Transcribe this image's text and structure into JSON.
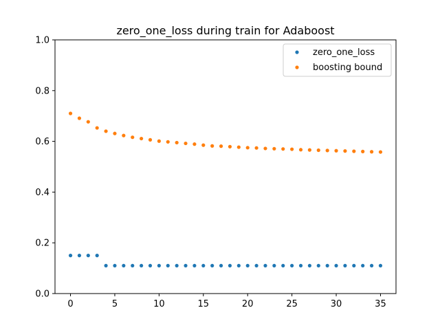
{
  "chart_data": {
    "type": "scatter",
    "title": "zero_one_loss during train for Adaboost",
    "xlabel": "",
    "ylabel": "",
    "xlim": [
      -1.75,
      36.75
    ],
    "ylim": [
      0.0,
      1.0
    ],
    "xticks": [
      0,
      5,
      10,
      15,
      20,
      25,
      30,
      35
    ],
    "yticks": [
      0.0,
      0.2,
      0.4,
      0.6,
      0.8,
      1.0
    ],
    "xtick_labels": [
      "0",
      "5",
      "10",
      "15",
      "20",
      "25",
      "30",
      "35"
    ],
    "ytick_labels": [
      "0.0",
      "0.2",
      "0.4",
      "0.6",
      "0.8",
      "1.0"
    ],
    "grid": false,
    "legend_position": "top-right",
    "x": [
      0,
      1,
      2,
      3,
      4,
      5,
      6,
      7,
      8,
      9,
      10,
      11,
      12,
      13,
      14,
      15,
      16,
      17,
      18,
      19,
      20,
      21,
      22,
      23,
      24,
      25,
      26,
      27,
      28,
      29,
      30,
      31,
      32,
      33,
      34,
      35
    ],
    "series": [
      {
        "name": "zero_one_loss",
        "color": "#1f77b4",
        "values": [
          0.15,
          0.15,
          0.15,
          0.15,
          0.11,
          0.11,
          0.11,
          0.11,
          0.11,
          0.11,
          0.11,
          0.11,
          0.11,
          0.11,
          0.11,
          0.11,
          0.11,
          0.11,
          0.11,
          0.11,
          0.11,
          0.11,
          0.11,
          0.11,
          0.11,
          0.11,
          0.11,
          0.11,
          0.11,
          0.11,
          0.11,
          0.11,
          0.11,
          0.11,
          0.11,
          0.11
        ]
      },
      {
        "name": "boosting bound",
        "color": "#ff7f0e",
        "values": [
          0.71,
          0.691,
          0.677,
          0.653,
          0.64,
          0.631,
          0.623,
          0.616,
          0.611,
          0.606,
          0.601,
          0.598,
          0.595,
          0.592,
          0.589,
          0.585,
          0.582,
          0.581,
          0.579,
          0.577,
          0.575,
          0.574,
          0.572,
          0.571,
          0.57,
          0.569,
          0.567,
          0.566,
          0.565,
          0.564,
          0.563,
          0.562,
          0.561,
          0.56,
          0.559,
          0.558
        ]
      }
    ]
  }
}
